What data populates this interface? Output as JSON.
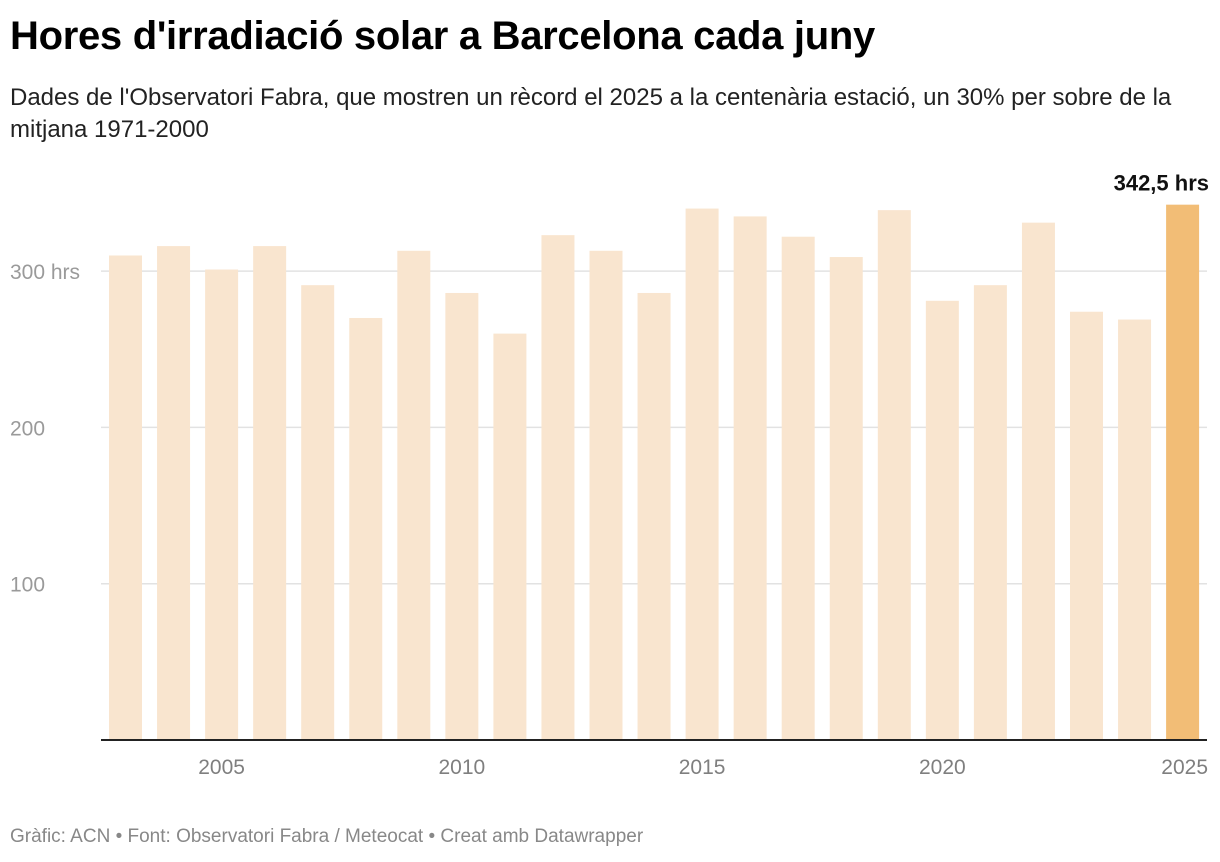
{
  "title": "Hores d'irradiació solar a Barcelona cada juny",
  "subtitle": "Dades de l'Observatori Fabra, que mostren un rècord el 2025 a la centenària estació, un 30% per sobre de la mitjana 1971-2000",
  "footer": "Gràfic: ACN • Font: Observatori Fabra / Meteocat • Creat amb Datawrapper",
  "colors": {
    "bar": "#f9e5cf",
    "highlight": "#f2bd76",
    "grid": "#e2e2e2",
    "axis": "#222222",
    "tick_label": "#9a9a9a",
    "x_label": "#7f7f7f"
  },
  "chart_data": {
    "type": "bar",
    "title": "Hores d'irradiació solar a Barcelona cada juny",
    "xlabel": "",
    "ylabel": "",
    "x": [
      2003,
      2004,
      2005,
      2006,
      2007,
      2008,
      2009,
      2010,
      2011,
      2012,
      2013,
      2014,
      2015,
      2016,
      2017,
      2018,
      2019,
      2020,
      2021,
      2022,
      2023,
      2024,
      2025
    ],
    "values": [
      310,
      316,
      301,
      316,
      291,
      270,
      313,
      286,
      260,
      323,
      313,
      286,
      340,
      335,
      322,
      309,
      339,
      281,
      291,
      331,
      274,
      269,
      342.5
    ],
    "ylim": [
      0,
      350
    ],
    "y_ticks": [
      100,
      200,
      300
    ],
    "y_tick_labels": [
      "100",
      "200",
      "300 hrs"
    ],
    "x_ticks": [
      2005,
      2010,
      2015,
      2020,
      2025
    ],
    "x_tick_labels": [
      "2005",
      "2010",
      "2015",
      "2020",
      "2025"
    ],
    "highlight": {
      "x": 2025,
      "label": "342,5 hrs"
    },
    "grid": true
  }
}
